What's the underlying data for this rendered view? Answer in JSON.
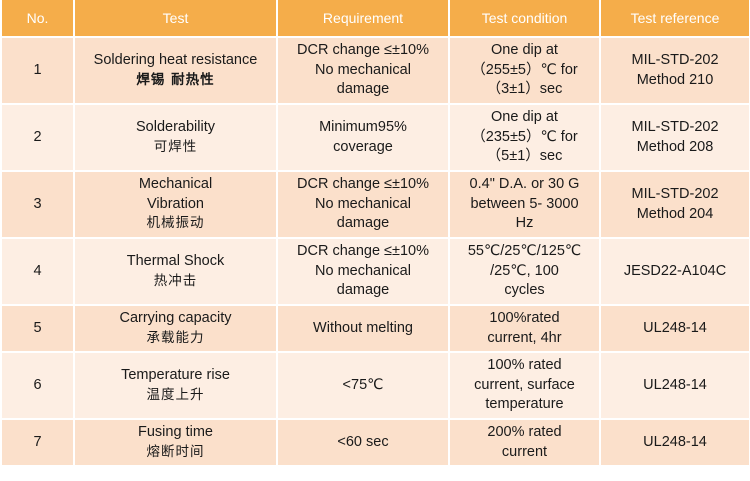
{
  "header": [
    "No.",
    "Test",
    "Requirement",
    "Test condition",
    "Test reference"
  ],
  "rows": [
    {
      "no": "1",
      "test_en": "Soldering heat resistance",
      "test_zh": "焊锡 耐热性",
      "requirement": [
        "DCR change ≤±10%",
        "No mechanical",
        "damage"
      ],
      "condition": [
        "One dip at",
        "（255±5）℃ for",
        "（3±1）sec"
      ],
      "reference": [
        "MIL-STD-202",
        "Method 210"
      ]
    },
    {
      "no": "2",
      "test_en": "Solderability",
      "test_zh": "可焊性",
      "requirement": [
        "Minimum95%",
        "coverage"
      ],
      "condition": [
        "One dip at",
        "（235±5）℃ for",
        "（5±1）sec"
      ],
      "reference": [
        "MIL-STD-202",
        "Method 208"
      ]
    },
    {
      "no": "3",
      "test_en": "Mechanical Vibration",
      "test_en_lines": [
        "Mechanical",
        "Vibration"
      ],
      "test_zh": "机械振动",
      "requirement": [
        "DCR change ≤±10%",
        "No mechanical",
        "damage"
      ],
      "condition": [
        "0.4\" D.A. or 30 G",
        "between 5- 3000",
        "Hz"
      ],
      "reference": [
        "MIL-STD-202",
        "Method 204"
      ]
    },
    {
      "no": "4",
      "test_en": "Thermal Shock",
      "test_zh": "热冲击",
      "requirement": [
        "DCR change ≤±10%",
        "No mechanical",
        "damage"
      ],
      "condition": [
        "55℃/25℃/125℃",
        "/25℃,  100",
        "cycles"
      ],
      "reference": [
        "JESD22-A104C"
      ]
    },
    {
      "no": "5",
      "test_en": "Carrying capacity",
      "test_zh": "承载能力",
      "requirement": [
        "Without melting"
      ],
      "condition": [
        "100%rated",
        "current, 4hr"
      ],
      "reference": [
        "UL248-14"
      ]
    },
    {
      "no": "6",
      "test_en": "Temperature rise",
      "test_zh": "温度上升",
      "requirement": [
        "<75℃"
      ],
      "condition": [
        "100% rated",
        "current,  surface",
        "temperature"
      ],
      "reference": [
        "UL248-14"
      ]
    },
    {
      "no": "7",
      "test_en": "Fusing time",
      "test_zh": "熔断时间",
      "requirement": [
        "<60 sec"
      ],
      "condition": [
        "200% rated",
        "current"
      ],
      "reference": [
        "UL248-14"
      ]
    }
  ]
}
